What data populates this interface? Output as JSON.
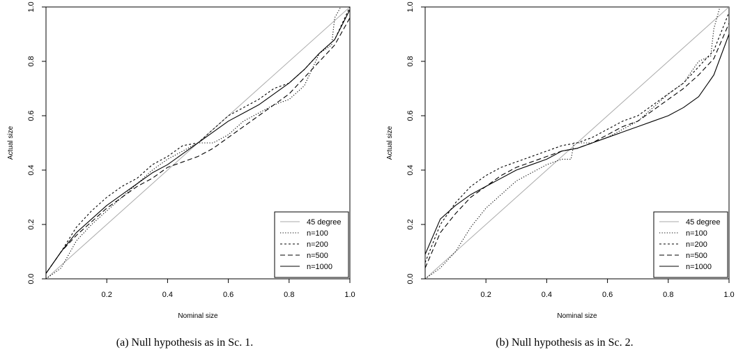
{
  "chart_data": [
    {
      "type": "line",
      "caption": "(a) Null hypothesis as in Sc. 1.",
      "xlabel": "Nominal size",
      "ylabel": "Actual size",
      "xlim": [
        0,
        1
      ],
      "ylim": [
        0,
        1
      ],
      "x_ticks": [
        "0.2",
        "0.4",
        "0.6",
        "0.8",
        "1.0"
      ],
      "y_ticks": [
        "0.0",
        "0.2",
        "0.4",
        "0.6",
        "0.8",
        "1.0"
      ],
      "grid": false,
      "legend_position": "bottom-right",
      "series": [
        {
          "name": "45 degree",
          "style": "solid",
          "color": "#aaaaaa",
          "x": [
            0,
            1
          ],
          "y": [
            0,
            1
          ]
        },
        {
          "name": "n=100",
          "style": "dotted",
          "color": "#000000",
          "x": [
            0,
            0.05,
            0.1,
            0.15,
            0.2,
            0.25,
            0.3,
            0.35,
            0.4,
            0.45,
            0.5,
            0.55,
            0.6,
            0.65,
            0.7,
            0.75,
            0.8,
            0.85,
            0.9,
            0.94,
            0.95,
            0.97,
            1.0
          ],
          "y": [
            0,
            0.04,
            0.14,
            0.2,
            0.25,
            0.3,
            0.35,
            0.4,
            0.44,
            0.47,
            0.5,
            0.5,
            0.53,
            0.58,
            0.61,
            0.64,
            0.66,
            0.71,
            0.83,
            0.86,
            0.96,
            1.0,
            1.0
          ]
        },
        {
          "name": "n=200",
          "style": "dashed-short",
          "color": "#000000",
          "x": [
            0,
            0.05,
            0.1,
            0.15,
            0.2,
            0.25,
            0.3,
            0.35,
            0.4,
            0.45,
            0.5,
            0.55,
            0.6,
            0.65,
            0.7,
            0.75,
            0.8,
            0.85,
            0.9,
            0.95,
            1.0
          ],
          "y": [
            0.02,
            0.1,
            0.19,
            0.25,
            0.3,
            0.34,
            0.37,
            0.42,
            0.45,
            0.49,
            0.5,
            0.55,
            0.6,
            0.63,
            0.66,
            0.7,
            0.72,
            0.77,
            0.83,
            0.88,
            1.0
          ]
        },
        {
          "name": "n=500",
          "style": "dashed-long",
          "color": "#000000",
          "x": [
            0,
            0.05,
            0.1,
            0.15,
            0.2,
            0.25,
            0.3,
            0.35,
            0.4,
            0.45,
            0.5,
            0.55,
            0.6,
            0.65,
            0.7,
            0.75,
            0.8,
            0.85,
            0.9,
            0.95,
            1.0
          ],
          "y": [
            0.02,
            0.1,
            0.16,
            0.21,
            0.26,
            0.3,
            0.34,
            0.37,
            0.41,
            0.43,
            0.45,
            0.48,
            0.52,
            0.56,
            0.6,
            0.64,
            0.68,
            0.74,
            0.8,
            0.86,
            0.96
          ]
        },
        {
          "name": "n=1000",
          "style": "solid",
          "color": "#000000",
          "x": [
            0,
            0.05,
            0.1,
            0.15,
            0.2,
            0.25,
            0.3,
            0.35,
            0.4,
            0.45,
            0.5,
            0.55,
            0.6,
            0.65,
            0.7,
            0.75,
            0.8,
            0.85,
            0.9,
            0.95,
            1.0
          ],
          "y": [
            0.02,
            0.1,
            0.17,
            0.22,
            0.27,
            0.31,
            0.35,
            0.39,
            0.42,
            0.46,
            0.5,
            0.54,
            0.58,
            0.61,
            0.64,
            0.68,
            0.72,
            0.77,
            0.83,
            0.88,
            0.99
          ]
        }
      ]
    },
    {
      "type": "line",
      "caption": "(b) Null hypothesis as in Sc. 2.",
      "xlabel": "Nominal size",
      "ylabel": "Actual size",
      "xlim": [
        0,
        1
      ],
      "ylim": [
        0,
        1
      ],
      "x_ticks": [
        "0.2",
        "0.4",
        "0.6",
        "0.8",
        "1.0"
      ],
      "y_ticks": [
        "0.0",
        "0.2",
        "0.4",
        "0.6",
        "0.8",
        "1.0"
      ],
      "grid": false,
      "legend_position": "bottom-right",
      "series": [
        {
          "name": "45 degree",
          "style": "solid",
          "color": "#aaaaaa",
          "x": [
            0,
            1
          ],
          "y": [
            0,
            1
          ]
        },
        {
          "name": "n=100",
          "style": "dotted",
          "color": "#000000",
          "x": [
            0,
            0.05,
            0.1,
            0.15,
            0.2,
            0.25,
            0.3,
            0.35,
            0.4,
            0.45,
            0.48,
            0.49,
            0.5,
            0.55,
            0.6,
            0.65,
            0.7,
            0.75,
            0.8,
            0.85,
            0.9,
            0.94,
            0.95,
            0.97,
            1.0
          ],
          "y": [
            0,
            0.04,
            0.1,
            0.19,
            0.26,
            0.31,
            0.36,
            0.39,
            0.42,
            0.44,
            0.44,
            0.5,
            0.5,
            0.5,
            0.52,
            0.55,
            0.58,
            0.63,
            0.68,
            0.72,
            0.8,
            0.82,
            0.92,
            1.0,
            1.0
          ]
        },
        {
          "name": "n=200",
          "style": "dashed-short",
          "color": "#000000",
          "x": [
            0,
            0.05,
            0.1,
            0.15,
            0.2,
            0.25,
            0.3,
            0.35,
            0.4,
            0.45,
            0.5,
            0.55,
            0.6,
            0.65,
            0.7,
            0.75,
            0.8,
            0.85,
            0.9,
            0.95,
            1.0
          ],
          "y": [
            0.06,
            0.2,
            0.28,
            0.34,
            0.38,
            0.41,
            0.43,
            0.45,
            0.47,
            0.49,
            0.5,
            0.52,
            0.55,
            0.58,
            0.6,
            0.64,
            0.68,
            0.72,
            0.78,
            0.84,
            0.98
          ]
        },
        {
          "name": "n=500",
          "style": "dashed-long",
          "color": "#000000",
          "x": [
            0,
            0.05,
            0.1,
            0.15,
            0.2,
            0.25,
            0.3,
            0.35,
            0.4,
            0.45,
            0.5,
            0.55,
            0.6,
            0.65,
            0.7,
            0.75,
            0.8,
            0.85,
            0.9,
            0.95,
            1.0
          ],
          "y": [
            0.04,
            0.17,
            0.24,
            0.3,
            0.34,
            0.38,
            0.41,
            0.43,
            0.45,
            0.47,
            0.48,
            0.5,
            0.53,
            0.56,
            0.58,
            0.62,
            0.66,
            0.7,
            0.75,
            0.81,
            0.94
          ]
        },
        {
          "name": "n=1000",
          "style": "solid",
          "color": "#000000",
          "x": [
            0,
            0.05,
            0.1,
            0.15,
            0.2,
            0.25,
            0.3,
            0.35,
            0.4,
            0.45,
            0.5,
            0.55,
            0.6,
            0.65,
            0.7,
            0.75,
            0.8,
            0.85,
            0.9,
            0.95,
            1.0
          ],
          "y": [
            0.09,
            0.22,
            0.27,
            0.31,
            0.34,
            0.37,
            0.4,
            0.42,
            0.44,
            0.47,
            0.48,
            0.5,
            0.52,
            0.54,
            0.56,
            0.58,
            0.6,
            0.63,
            0.67,
            0.75,
            0.9
          ]
        }
      ]
    }
  ]
}
